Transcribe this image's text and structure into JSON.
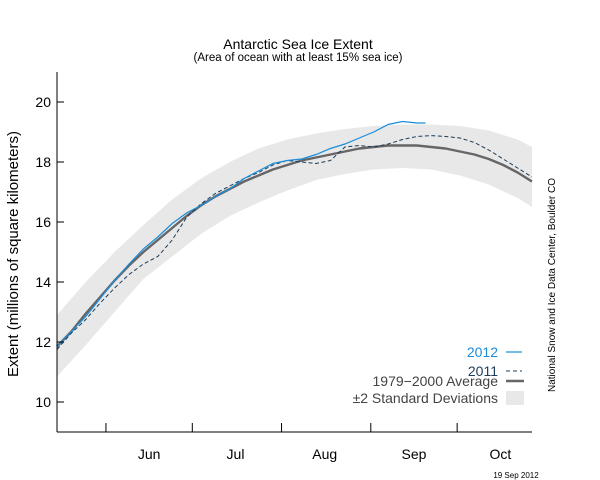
{
  "chart_data": {
    "type": "line",
    "title": "Antarctic Sea Ice Extent",
    "subtitle": "(Area of ocean with at least 15% sea ice)",
    "ylabel": "Extent (millions of square kilometers)",
    "xlabel": "",
    "ylim": [
      9.0,
      21.0
    ],
    "yticks": [
      10,
      12,
      14,
      16,
      18,
      20
    ],
    "x_unit": "day of year",
    "xlim": [
      135,
      300
    ],
    "x_tick_days": [
      152,
      182,
      213,
      244,
      274
    ],
    "x_month_labels": [
      {
        "label": "Jun",
        "day": 167
      },
      {
        "label": "Jul",
        "day": 197
      },
      {
        "label": "Aug",
        "day": 228
      },
      {
        "label": "Sep",
        "day": 259
      },
      {
        "label": "Oct",
        "day": 289
      }
    ],
    "grid": false,
    "legend_position": "bottom-right",
    "side_credit": "National Snow and Ice Data Center, Boulder CO",
    "date_stamp": "19 Sep 2012",
    "series": [
      {
        "name": "2012",
        "style": "solid",
        "color": "#1a8ddb",
        "x": [
          135,
          140,
          145,
          150,
          155,
          160,
          165,
          170,
          175,
          180,
          185,
          190,
          195,
          200,
          205,
          210,
          215,
          220,
          225,
          230,
          235,
          240,
          245,
          250,
          255,
          258,
          260,
          263
        ],
        "values": [
          11.85,
          12.35,
          12.85,
          13.45,
          14.05,
          14.6,
          15.1,
          15.5,
          15.95,
          16.3,
          16.55,
          16.85,
          17.1,
          17.45,
          17.7,
          17.95,
          18.05,
          18.1,
          18.25,
          18.45,
          18.6,
          18.8,
          19.0,
          19.25,
          19.35,
          19.32,
          19.3,
          19.3
        ]
      },
      {
        "name": "2011",
        "style": "dashed",
        "color": "#1c3d5a",
        "x": [
          135,
          140,
          145,
          150,
          155,
          160,
          165,
          170,
          175,
          180,
          185,
          190,
          195,
          200,
          205,
          210,
          215,
          220,
          225,
          230,
          235,
          240,
          245,
          250,
          255,
          260,
          265,
          270,
          275,
          280,
          285,
          290,
          295,
          300
        ],
        "values": [
          11.75,
          12.3,
          12.75,
          13.3,
          13.8,
          14.25,
          14.6,
          14.85,
          15.4,
          16.15,
          16.6,
          16.95,
          17.2,
          17.45,
          17.65,
          17.9,
          18.05,
          18.0,
          17.95,
          18.05,
          18.5,
          18.55,
          18.5,
          18.6,
          18.75,
          18.85,
          18.88,
          18.85,
          18.8,
          18.65,
          18.4,
          18.1,
          17.8,
          17.5
        ]
      },
      {
        "name": "1979−2000 Average",
        "style": "thick",
        "color": "#666666",
        "x": [
          135,
          140,
          145,
          150,
          155,
          160,
          165,
          170,
          175,
          180,
          185,
          190,
          195,
          200,
          205,
          210,
          215,
          220,
          225,
          230,
          235,
          240,
          245,
          250,
          255,
          260,
          265,
          270,
          275,
          280,
          285,
          290,
          295,
          300
        ],
        "values": [
          11.85,
          12.35,
          12.95,
          13.5,
          14.05,
          14.55,
          15.0,
          15.4,
          15.8,
          16.2,
          16.55,
          16.85,
          17.1,
          17.35,
          17.55,
          17.75,
          17.9,
          18.05,
          18.15,
          18.25,
          18.35,
          18.45,
          18.5,
          18.55,
          18.55,
          18.55,
          18.5,
          18.45,
          18.35,
          18.25,
          18.1,
          17.9,
          17.65,
          17.35
        ]
      },
      {
        "name": "±2 Standard Deviations",
        "style": "band",
        "color": "#e8e8e8",
        "x": [
          135,
          145,
          155,
          165,
          175,
          185,
          195,
          205,
          215,
          225,
          235,
          245,
          255,
          265,
          275,
          285,
          295,
          300
        ],
        "upper": [
          12.9,
          14.0,
          15.0,
          15.9,
          16.75,
          17.45,
          18.0,
          18.45,
          18.75,
          18.95,
          19.1,
          19.2,
          19.25,
          19.25,
          19.2,
          19.05,
          18.75,
          18.5
        ],
        "lower": [
          10.85,
          11.9,
          13.0,
          14.1,
          14.85,
          15.6,
          16.2,
          16.65,
          17.05,
          17.4,
          17.6,
          17.75,
          17.8,
          17.75,
          17.55,
          17.25,
          16.8,
          16.5
        ]
      }
    ]
  }
}
